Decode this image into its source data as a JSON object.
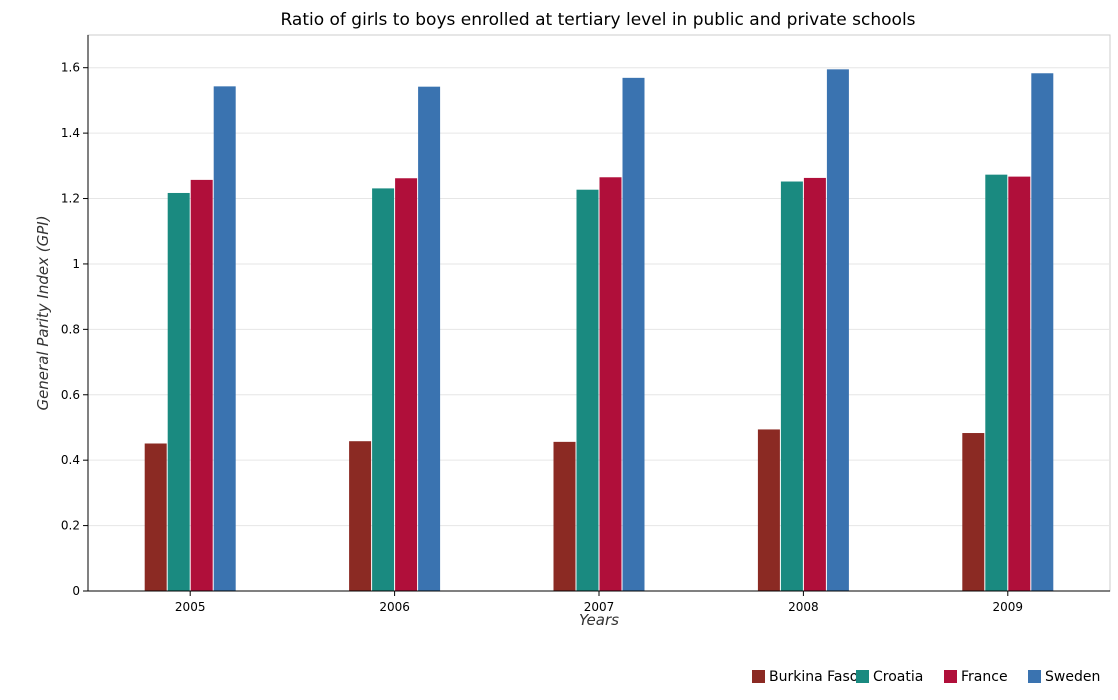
{
  "chart_data": {
    "type": "bar",
    "title": "Ratio of girls to boys enrolled at tertiary level in public and private schools",
    "xlabel": "Years",
    "ylabel": "General Parity Index (GPI)",
    "categories": [
      "2005",
      "2006",
      "2007",
      "2008",
      "2009"
    ],
    "ylim": [
      0,
      1.7
    ],
    "yticks": [
      0,
      0.2,
      0.4,
      0.6,
      0.8,
      1,
      1.2,
      1.4,
      1.6
    ],
    "ytick_labels": [
      "0",
      "0.2",
      "0.4",
      "0.6",
      "0.8",
      "1",
      "1.2",
      "1.4",
      "1.6"
    ],
    "grid": true,
    "legend_position": "bottom-right",
    "series": [
      {
        "name": "Burkina Faso",
        "color": "#8b2a23",
        "values": [
          0.451,
          0.458,
          0.456,
          0.494,
          0.483
        ]
      },
      {
        "name": "Croatia",
        "color": "#1a8a80",
        "values": [
          1.217,
          1.231,
          1.227,
          1.252,
          1.273
        ]
      },
      {
        "name": "France",
        "color": "#b00f3a",
        "values": [
          1.257,
          1.262,
          1.265,
          1.263,
          1.267
        ]
      },
      {
        "name": "Sweden",
        "color": "#3a73b0",
        "values": [
          1.543,
          1.542,
          1.569,
          1.595,
          1.583
        ]
      }
    ]
  }
}
